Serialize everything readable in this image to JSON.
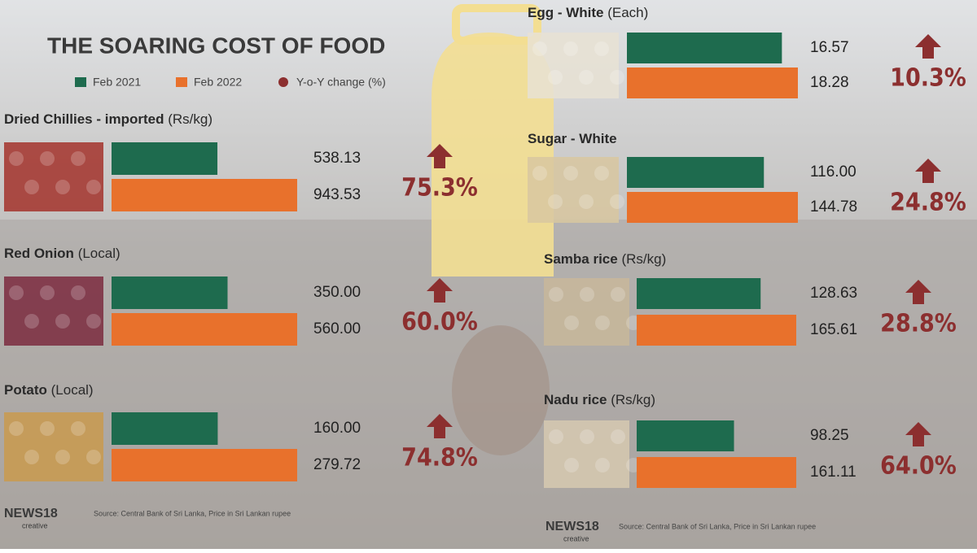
{
  "title": "THE SOARING COST OF FOOD",
  "legend": [
    {
      "name": "Feb 2021",
      "color": "#1e6b4e"
    },
    {
      "name": "Feb 2022",
      "color": "#e8712c"
    },
    {
      "name": "Y-o-Y change (%)",
      "color": "#8c2f2f"
    }
  ],
  "chart_data": [
    {
      "type": "bar",
      "title": "Dried Chillies - imported",
      "unit": "(Rs/kg)",
      "values": [
        538.13,
        943.53
      ],
      "value_labels": [
        "538.13",
        "943.53"
      ],
      "change": 75.3,
      "change_label": "75.3%"
    },
    {
      "type": "bar",
      "title": "Red Onion",
      "unit": "(Local)",
      "values": [
        350,
        560
      ],
      "value_labels": [
        "350.00",
        "560.00"
      ],
      "change": 60,
      "change_label": "60.0%"
    },
    {
      "type": "bar",
      "title": "Potato",
      "unit": "(Local)",
      "values": [
        160,
        279.72
      ],
      "value_labels": [
        "160.00",
        "279.72"
      ],
      "change": 74.8,
      "change_label": "74.8%"
    },
    {
      "type": "bar",
      "title": "Egg - White",
      "unit": "(Each)",
      "values": [
        16.57,
        18.28
      ],
      "value_labels": [
        "16.57",
        "18.28"
      ],
      "change": 10.3,
      "change_label": "10.3%"
    },
    {
      "type": "bar",
      "title": "Sugar - White",
      "values": [
        116,
        144.78
      ],
      "value_labels": [
        "116.00",
        "144.78"
      ],
      "change": 24.8,
      "change_label": "24.8%"
    },
    {
      "type": "bar",
      "title": "Samba rice",
      "unit": "(Rs/kg)",
      "values": [
        128.63,
        165.61
      ],
      "value_labels": [
        "128.63",
        "165.61"
      ],
      "change": 28.8,
      "change_label": "28.8%"
    },
    {
      "type": "bar",
      "title": "Nadu rice",
      "unit": "(Rs/kg)",
      "values": [
        98.25,
        161.11
      ],
      "value_labels": [
        "98.25",
        "161.11"
      ],
      "change": 64,
      "change_label": "64.0%"
    }
  ],
  "sources": [
    "Source: Central Bank of Sri Lanka, Price in Sri Lankan rupee",
    "Source: Central Bank of Sri Lanka, Price in Sri Lankan rupee"
  ],
  "logos": [
    {
      "name": "NEWS18",
      "sub": "creative"
    },
    {
      "name": "NEWS18",
      "sub": "creative"
    }
  ]
}
